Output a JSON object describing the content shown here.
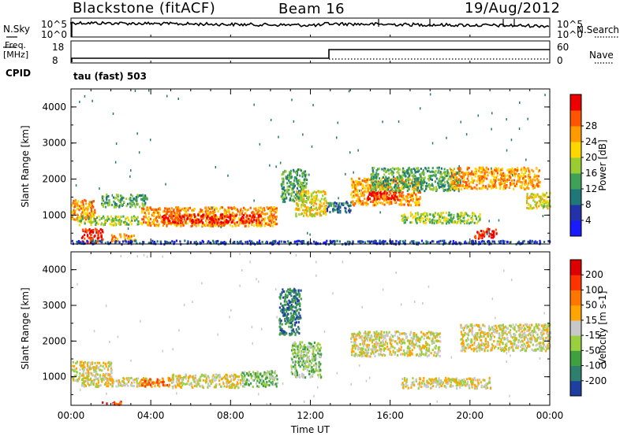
{
  "header": {
    "station": "Blackstone (fitACF)",
    "beam": "Beam 16",
    "date": "19/Aug/2012"
  },
  "summary": {
    "left_labels": [
      "N.Sky",
      "Freq.",
      "[MHz]",
      "CPID"
    ],
    "right_labels": [
      "N.Search",
      "Nave"
    ],
    "nsky_ticks": [
      "10^5",
      "10^0"
    ],
    "nsearch_ticks": [
      "10^5",
      "10^0"
    ],
    "freq_ticks": [
      "18",
      "8"
    ],
    "nave_ticks": [
      "60",
      "0"
    ],
    "cpid_text": "tau (fast) 503"
  },
  "chart_data": [
    {
      "type": "heatmap",
      "name": "power-panel",
      "ylabel": "Slant Range [km]",
      "xlim": [
        0,
        24
      ],
      "ylim": [
        200,
        4500
      ],
      "y_ticks": [
        "1000",
        "2000",
        "3000",
        "4000"
      ],
      "colorbar": {
        "label": "Power [dB]",
        "ticks": [
          "4",
          "8",
          "12",
          "16",
          "20",
          "24",
          "28"
        ],
        "colors": [
          "#1a1aff",
          "#2233aa",
          "#1f7777",
          "#3fa05a",
          "#9acd32",
          "#ffd700",
          "#ff9a00",
          "#ff5500",
          "#ee0000"
        ]
      },
      "regions": [
        {
          "t": [
            0.0,
            1.2
          ],
          "r": [
            900,
            1450
          ],
          "level": 6
        },
        {
          "t": [
            0.3,
            3.5
          ],
          "r": [
            750,
            1000
          ],
          "level": 4
        },
        {
          "t": [
            0.5,
            1.6
          ],
          "r": [
            250,
            650
          ],
          "level": 8
        },
        {
          "t": [
            1.5,
            3.8
          ],
          "r": [
            1250,
            1600
          ],
          "level": 3
        },
        {
          "t": [
            2.0,
            3.2
          ],
          "r": [
            300,
            500
          ],
          "level": 6
        },
        {
          "t": [
            3.5,
            10.3
          ],
          "r": [
            720,
            1250
          ],
          "level": 6
        },
        {
          "t": [
            4.5,
            9.5
          ],
          "r": [
            800,
            1050
          ],
          "level": 8
        },
        {
          "t": [
            10.5,
            11.8
          ],
          "r": [
            1400,
            2300
          ],
          "level": 3
        },
        {
          "t": [
            11.2,
            12.8
          ],
          "r": [
            1000,
            1700
          ],
          "level": 5
        },
        {
          "t": [
            12.8,
            14.0
          ],
          "r": [
            1100,
            1400
          ],
          "level": 2
        },
        {
          "t": [
            14.0,
            17.5
          ],
          "r": [
            1300,
            2050
          ],
          "level": 6
        },
        {
          "t": [
            14.8,
            16.5
          ],
          "r": [
            1450,
            1700
          ],
          "level": 8
        },
        {
          "t": [
            15.0,
            19.5
          ],
          "r": [
            1700,
            2350
          ],
          "level": 3
        },
        {
          "t": [
            16.5,
            20.5
          ],
          "r": [
            800,
            1100
          ],
          "level": 4
        },
        {
          "t": [
            19.0,
            23.5
          ],
          "r": [
            1750,
            2350
          ],
          "level": 6
        },
        {
          "t": [
            20.2,
            21.3
          ],
          "r": [
            380,
            650
          ],
          "level": 8
        },
        {
          "t": [
            22.8,
            24.0
          ],
          "r": [
            1200,
            1650
          ],
          "level": 5
        },
        {
          "t": [
            0.0,
            24.0
          ],
          "r": [
            220,
            320
          ],
          "level": 1
        }
      ]
    },
    {
      "type": "heatmap",
      "name": "velocity-panel",
      "ylabel": "Slant Range [km]",
      "xlabel": "Time UT",
      "xlim": [
        0,
        24
      ],
      "ylim": [
        200,
        4500
      ],
      "x_ticks": [
        "00:00",
        "04:00",
        "08:00",
        "12:00",
        "16:00",
        "20:00",
        "00:00"
      ],
      "y_ticks": [
        "1000",
        "2000",
        "3000",
        "4000"
      ],
      "colorbar": {
        "label": "Velocity [m s-1]",
        "ticks": [
          "200",
          "100",
          "50",
          "15",
          "-15",
          "-50",
          "-100",
          "-200"
        ],
        "colors": [
          "#1f3fa0",
          "#2f7f6f",
          "#3fa03f",
          "#9ad040",
          "#c8c8c8",
          "#ffa500",
          "#ff7700",
          "#ff3300",
          "#dd0000"
        ]
      },
      "regions": [
        {
          "t": [
            0.0,
            2.0
          ],
          "r": [
            900,
            1450
          ],
          "level": 4
        },
        {
          "t": [
            0.5,
            4.0
          ],
          "r": [
            750,
            1000
          ],
          "level": 4
        },
        {
          "t": [
            3.5,
            5.0
          ],
          "r": [
            750,
            1000
          ],
          "level": 6
        },
        {
          "t": [
            5.0,
            8.5
          ],
          "r": [
            720,
            1100
          ],
          "level": 4
        },
        {
          "t": [
            8.5,
            10.3
          ],
          "r": [
            750,
            1200
          ],
          "level": 3
        },
        {
          "t": [
            10.4,
            11.5
          ],
          "r": [
            2200,
            3500
          ],
          "level": 1
        },
        {
          "t": [
            11.0,
            12.5
          ],
          "r": [
            1000,
            2000
          ],
          "level": 3
        },
        {
          "t": [
            14.0,
            18.5
          ],
          "r": [
            1600,
            2300
          ],
          "level": 4
        },
        {
          "t": [
            16.5,
            21.0
          ],
          "r": [
            700,
            1000
          ],
          "level": 4
        },
        {
          "t": [
            19.5,
            24.0
          ],
          "r": [
            1750,
            2500
          ],
          "level": 4
        },
        {
          "t": [
            1.5,
            2.5
          ],
          "r": [
            230,
            330
          ],
          "level": 7
        }
      ]
    }
  ]
}
